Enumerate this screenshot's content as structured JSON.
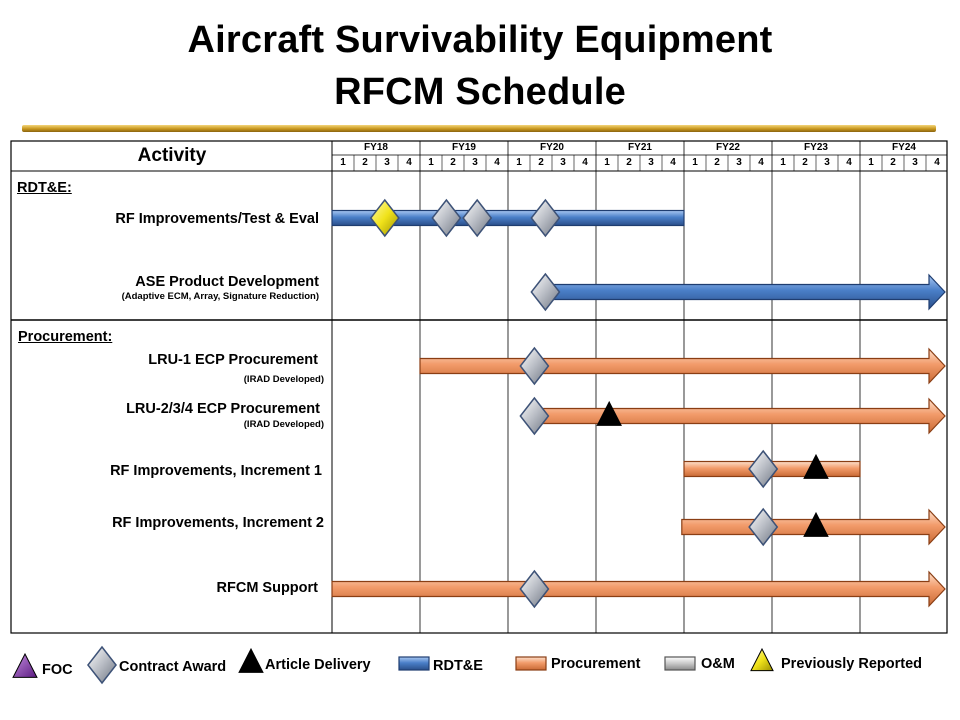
{
  "header": {
    "title_line1": "Aircraft Survivability Equipment",
    "title_line2": "RFCM Schedule"
  },
  "table": {
    "activity_header": "Activity",
    "fiscal_years": [
      "FY18",
      "FY19",
      "FY20",
      "FY21",
      "FY22",
      "FY23",
      "FY24"
    ],
    "quarters": [
      "1",
      "2",
      "3",
      "4"
    ]
  },
  "sections": {
    "rdte_label": "RDT&E:",
    "procurement_label": "Procurement:"
  },
  "rows": [
    {
      "label": "RF Improvements/Test & Eval",
      "sub": ""
    },
    {
      "label": "ASE Product Development",
      "sub": "(Adaptive ECM, Array, Signature Reduction)"
    },
    {
      "label": "LRU-1 ECP Procurement",
      "sub": "(IRAD Developed)"
    },
    {
      "label": "LRU-2/3/4 ECP Procurement",
      "sub": "(IRAD Developed)"
    },
    {
      "label": "RF Improvements, Increment 1",
      "sub": ""
    },
    {
      "label": "RF Improvements, Increment 2",
      "sub": ""
    },
    {
      "label": "RFCM Support",
      "sub": ""
    }
  ],
  "schedule": {
    "bars": [
      {
        "row": 0,
        "type": "rdte",
        "start": 0.0,
        "end": 16.0,
        "arrow": false
      },
      {
        "row": 1,
        "type": "rdte",
        "start": 9.7,
        "end": 28.0,
        "arrow": true
      },
      {
        "row": 2,
        "type": "procurement",
        "start": 4.0,
        "end": 28.0,
        "arrow": true
      },
      {
        "row": 3,
        "type": "procurement",
        "start": 9.2,
        "end": 28.0,
        "arrow": true
      },
      {
        "row": 4,
        "type": "procurement",
        "start": 16.0,
        "end": 24.0,
        "arrow": false
      },
      {
        "row": 5,
        "type": "procurement",
        "start": 15.9,
        "end": 28.0,
        "arrow": true
      },
      {
        "row": 6,
        "type": "procurement",
        "start": 0.0,
        "end": 28.0,
        "arrow": true
      }
    ],
    "milestones": [
      {
        "row": 0,
        "type": "previously-reported",
        "q": 2.4
      },
      {
        "row": 0,
        "type": "contract-award",
        "q": 5.2
      },
      {
        "row": 0,
        "type": "contract-award",
        "q": 6.6
      },
      {
        "row": 0,
        "type": "contract-award",
        "q": 9.7
      },
      {
        "row": 1,
        "type": "contract-award",
        "q": 9.7
      },
      {
        "row": 2,
        "type": "contract-award",
        "q": 9.2
      },
      {
        "row": 3,
        "type": "contract-award",
        "q": 9.2
      },
      {
        "row": 3,
        "type": "article-delivery",
        "q": 12.6
      },
      {
        "row": 4,
        "type": "contract-award",
        "q": 19.6
      },
      {
        "row": 4,
        "type": "article-delivery",
        "q": 22.0
      },
      {
        "row": 5,
        "type": "contract-award",
        "q": 19.6
      },
      {
        "row": 5,
        "type": "article-delivery",
        "q": 22.0
      },
      {
        "row": 6,
        "type": "contract-award",
        "q": 9.2
      }
    ]
  },
  "legend": {
    "foc": "FOC",
    "contract_award": "Contract Award",
    "article_delivery": "Article Delivery",
    "rdte": "RDT&E",
    "procurement": "Procurement",
    "om": "O&M",
    "previously_reported": "Previously Reported"
  },
  "colors": {
    "rdte": "#4a7fc8",
    "procurement": "#f29b6a",
    "foc": "#7a2aa0",
    "previously_reported": "#f0e21a",
    "title_rule": "#c8971e"
  }
}
